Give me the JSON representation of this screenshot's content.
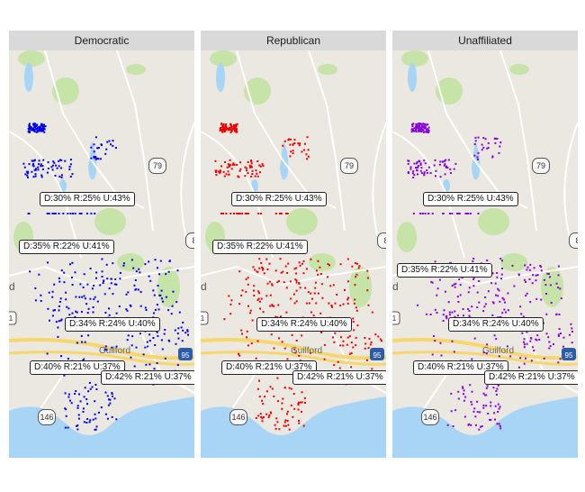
{
  "panels": [
    {
      "title": "Democratic",
      "color": "#0000ee",
      "seed": 11
    },
    {
      "title": "Republican",
      "color": "#ee0000",
      "seed": 23
    },
    {
      "title": "Unaffiliated",
      "color": "#8800dd",
      "seed": 37
    }
  ],
  "labels": [
    "D:30% R:25% U:43%",
    "D:35% R:22% U:41%",
    "D:34% R:24% U:40%",
    "D:40% R:21% U:37%",
    "D:42% R:21% U:37%"
  ],
  "map_text": {
    "route_79": "79",
    "route_8": "8",
    "route_1": "1",
    "route_95": "95",
    "route_146": "146",
    "place_guilford": "Guilford",
    "edge_d": "d"
  },
  "colors": {
    "land": "#ebe7e1",
    "water": "#a8d4f5",
    "park": "#c6e3a8",
    "highway": "#f7d76b",
    "interstate": "#2d5da8"
  }
}
